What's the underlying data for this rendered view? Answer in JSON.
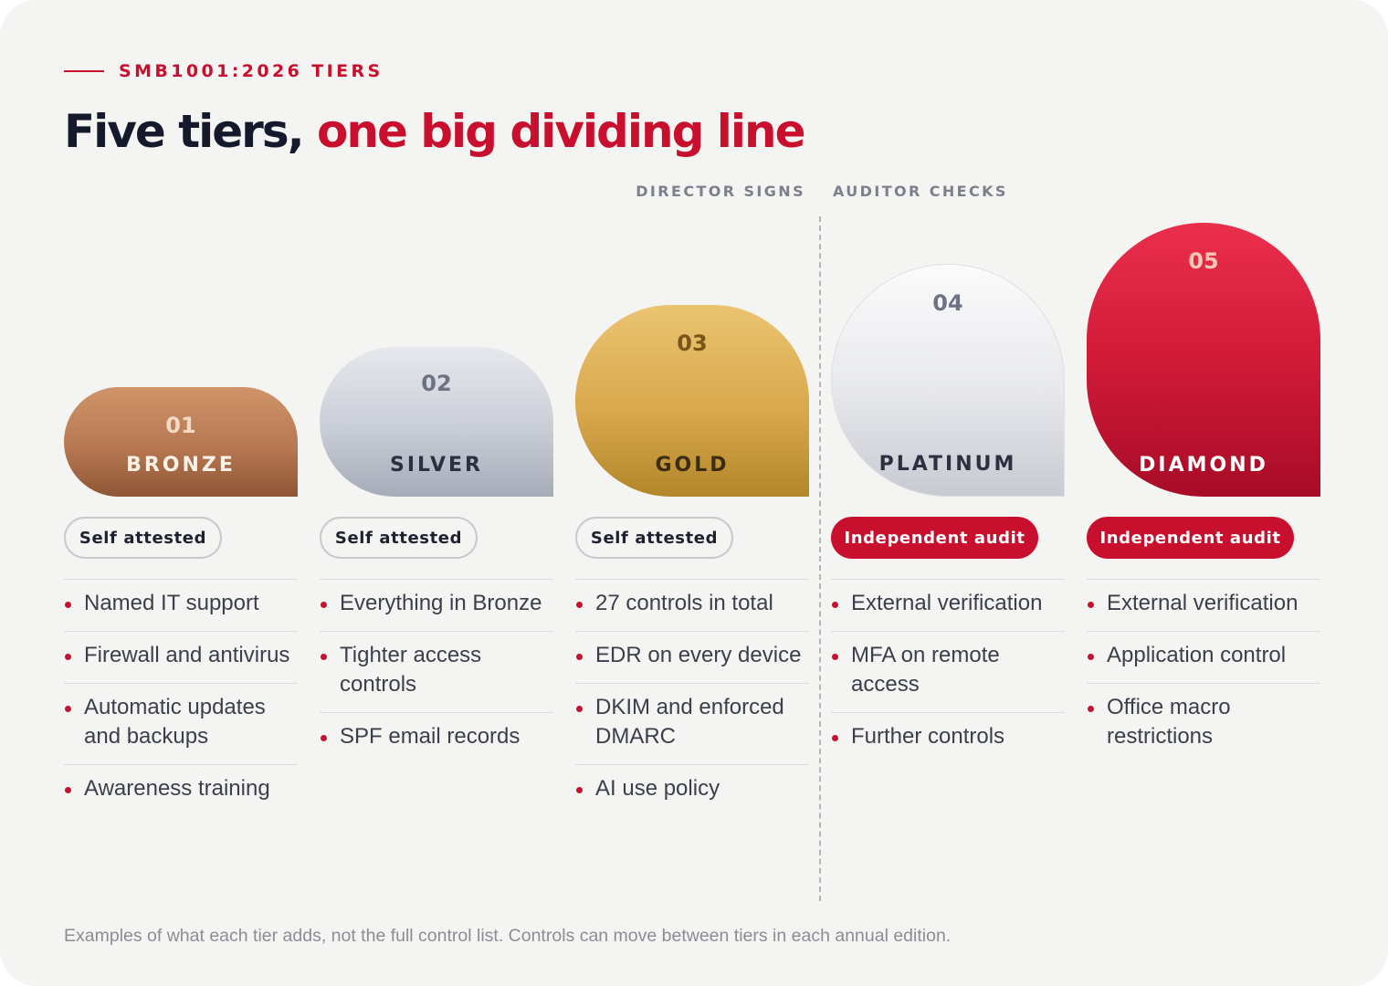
{
  "eyebrow": "SMB1001:2026 TIERS",
  "headline": {
    "part1": "Five tiers,",
    "part2": "one big dividing line"
  },
  "zones": {
    "left": "DIRECTOR SIGNS",
    "right": "AUDITOR CHECKS"
  },
  "tiers": [
    {
      "number": "01",
      "name": "BRONZE",
      "badge": "Self attested",
      "items": [
        "Named IT support",
        "Firewall and antivirus",
        "Automatic updates and backups",
        "Awareness training"
      ]
    },
    {
      "number": "02",
      "name": "SILVER",
      "badge": "Self attested",
      "items": [
        "Everything in Bronze",
        "Tighter access controls",
        "SPF email records"
      ]
    },
    {
      "number": "03",
      "name": "GOLD",
      "badge": "Self attested",
      "items": [
        "27 controls in total",
        "EDR on every device",
        "DKIM and enforced DMARC",
        "AI use policy"
      ]
    },
    {
      "number": "04",
      "name": "PLATINUM",
      "badge": "Independent audit",
      "items": [
        "External verification",
        "MFA on remote access",
        "Further controls"
      ]
    },
    {
      "number": "05",
      "name": "DIAMOND",
      "badge": "Independent audit",
      "items": [
        "External verification",
        "Application control",
        "Office macro restrictions"
      ]
    }
  ],
  "colors": {
    "accent": "#c8102e",
    "bronze": "#b77852",
    "silver": "#c9cdd6",
    "gold": "#d9a84c",
    "platinum": "#e7e8ec",
    "diamond": "#d11a38"
  },
  "footnote": "Examples of what each tier adds, not the full control list. Controls can move between tiers in each annual edition."
}
